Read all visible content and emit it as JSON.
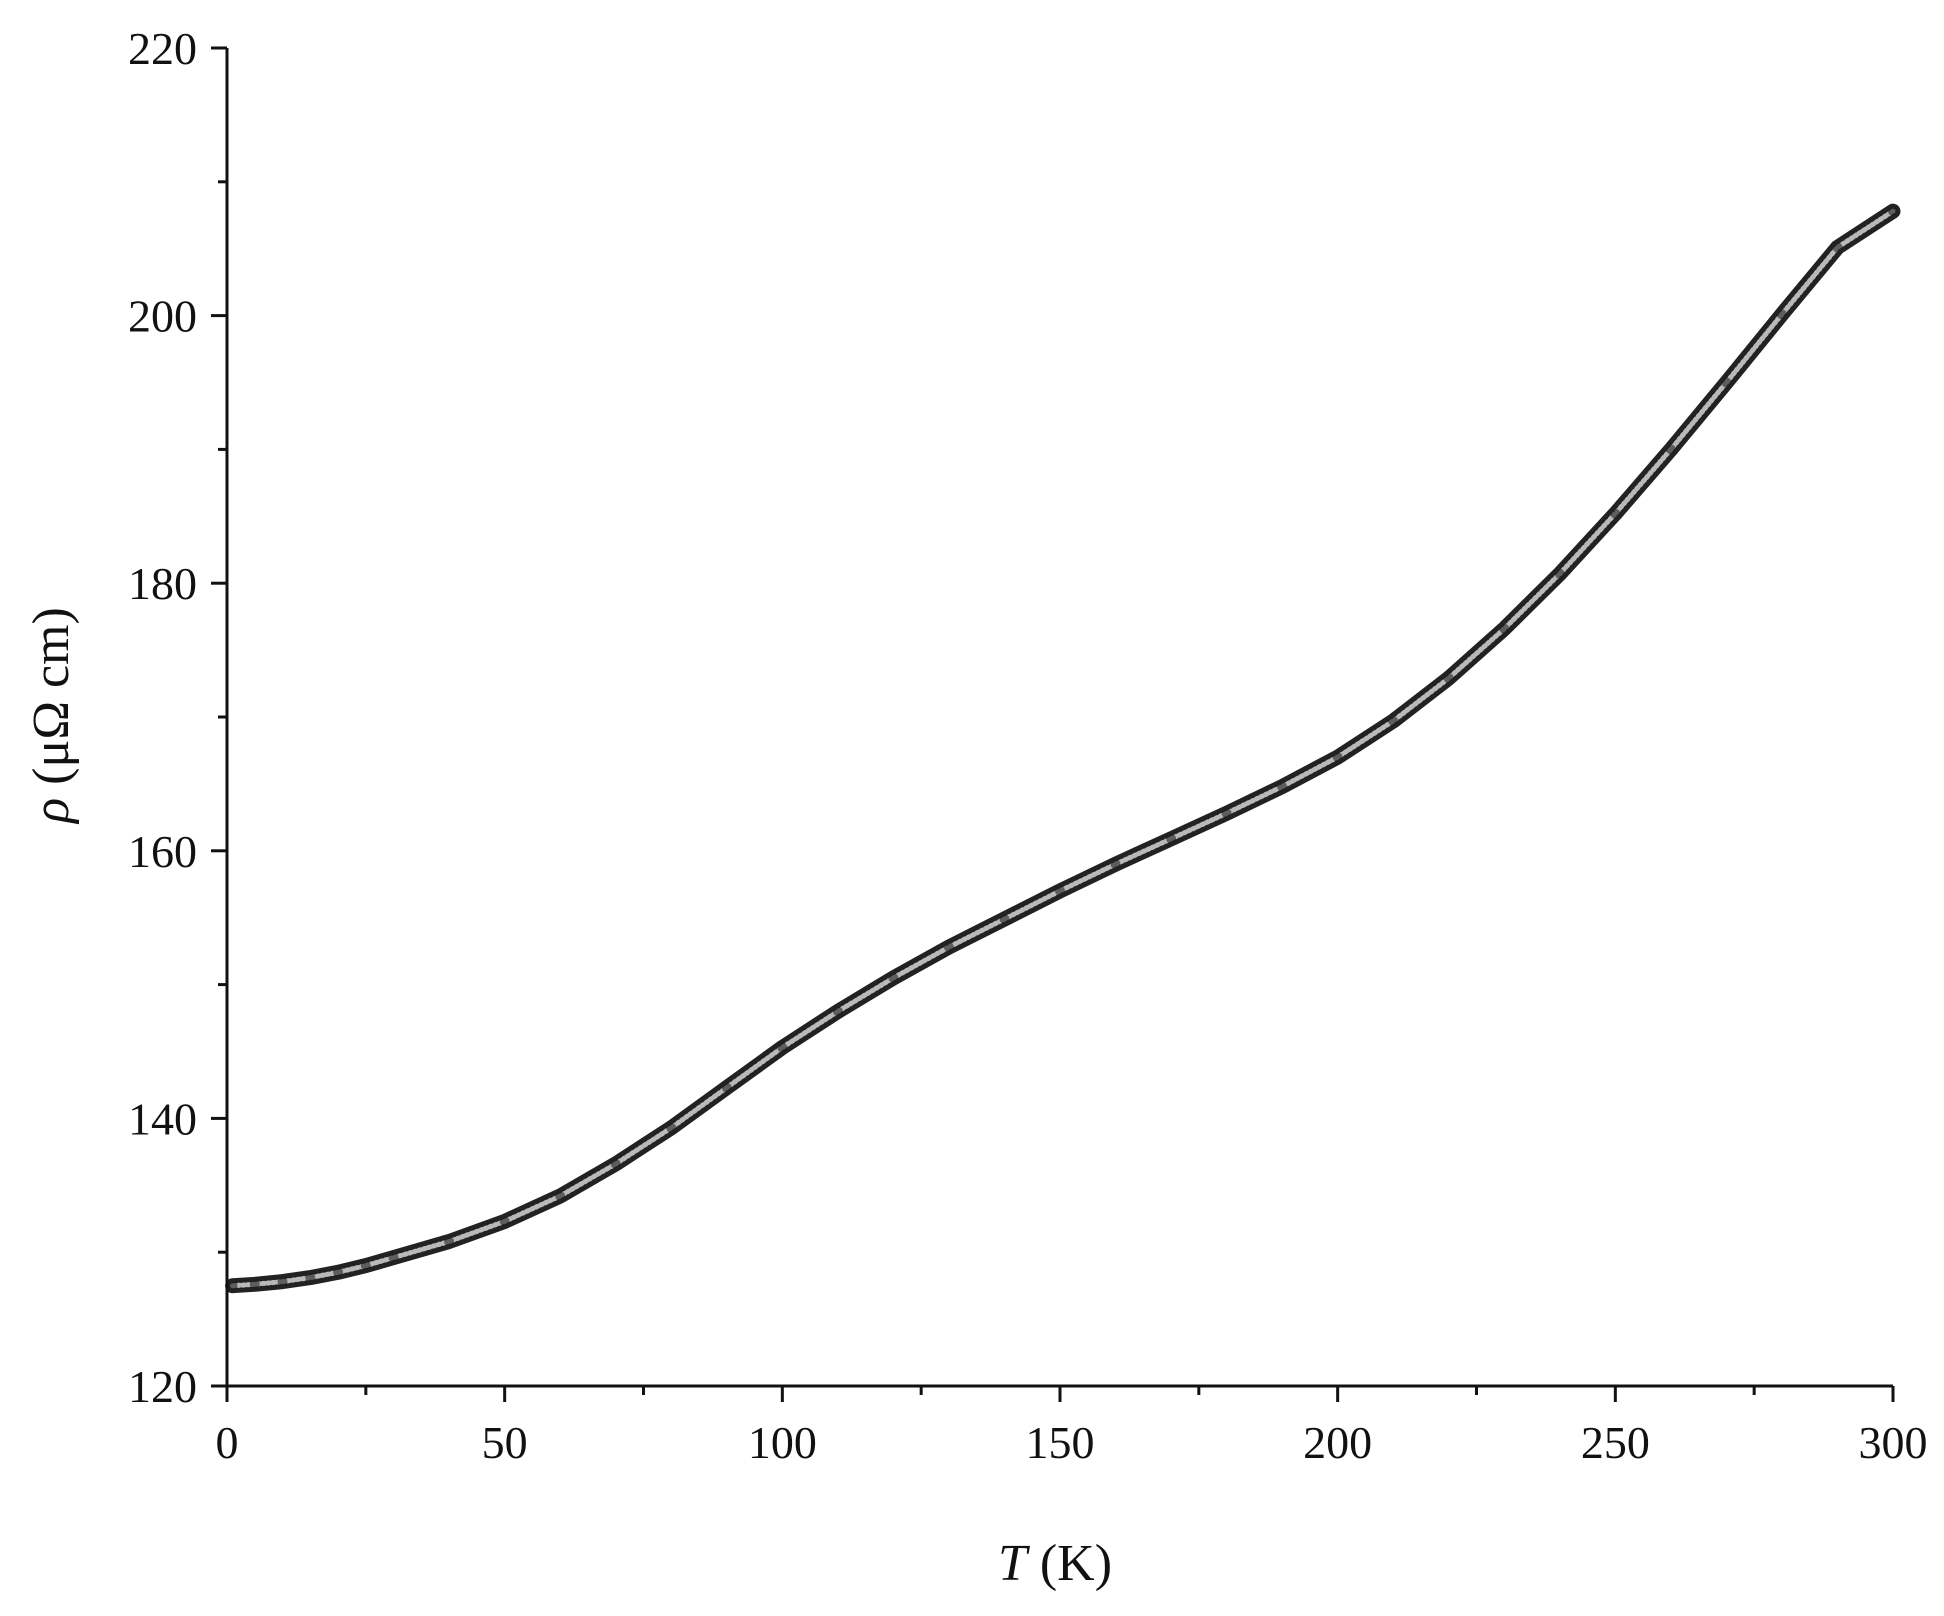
{
  "chart_data": {
    "type": "line",
    "title": "",
    "xlabel_var": "T",
    "xlabel_unit": " (K)",
    "ylabel_var": "ρ",
    "ylabel_unit": " (μΩ cm)",
    "xlim": [
      0,
      300
    ],
    "ylim": [
      120,
      220
    ],
    "xticks": [
      0,
      50,
      100,
      150,
      200,
      250,
      300
    ],
    "xtick_labels": [
      "0",
      "50",
      "100",
      "150",
      "200",
      "250",
      "300"
    ],
    "xminor_ticks": [
      25,
      75,
      125,
      175,
      225,
      275
    ],
    "yticks": [
      120,
      140,
      160,
      180,
      200,
      220
    ],
    "ytick_labels": [
      "120",
      "140",
      "160",
      "180",
      "200",
      "220"
    ],
    "yminor_ticks": [
      130,
      150,
      170,
      190,
      210
    ],
    "grid": false,
    "legend": "none",
    "series": [
      {
        "color": "#222222",
        "x": [
          1,
          5,
          10,
          15,
          20,
          25,
          30,
          40,
          50,
          60,
          70,
          80,
          90,
          100,
          110,
          120,
          130,
          140,
          150,
          160,
          170,
          180,
          190,
          200,
          210,
          220,
          230,
          240,
          250,
          260,
          270,
          280,
          290,
          300
        ],
        "y": [
          127.5,
          127.6,
          127.8,
          128.1,
          128.5,
          129.0,
          129.6,
          130.8,
          132.3,
          134.2,
          136.6,
          139.3,
          142.3,
          145.3,
          148.0,
          150.5,
          152.8,
          154.9,
          157.0,
          159.0,
          160.9,
          162.8,
          164.8,
          167.0,
          169.7,
          172.9,
          176.6,
          180.7,
          185.2,
          190.0,
          195.0,
          200.1,
          205.1,
          207.8
        ]
      }
    ]
  }
}
